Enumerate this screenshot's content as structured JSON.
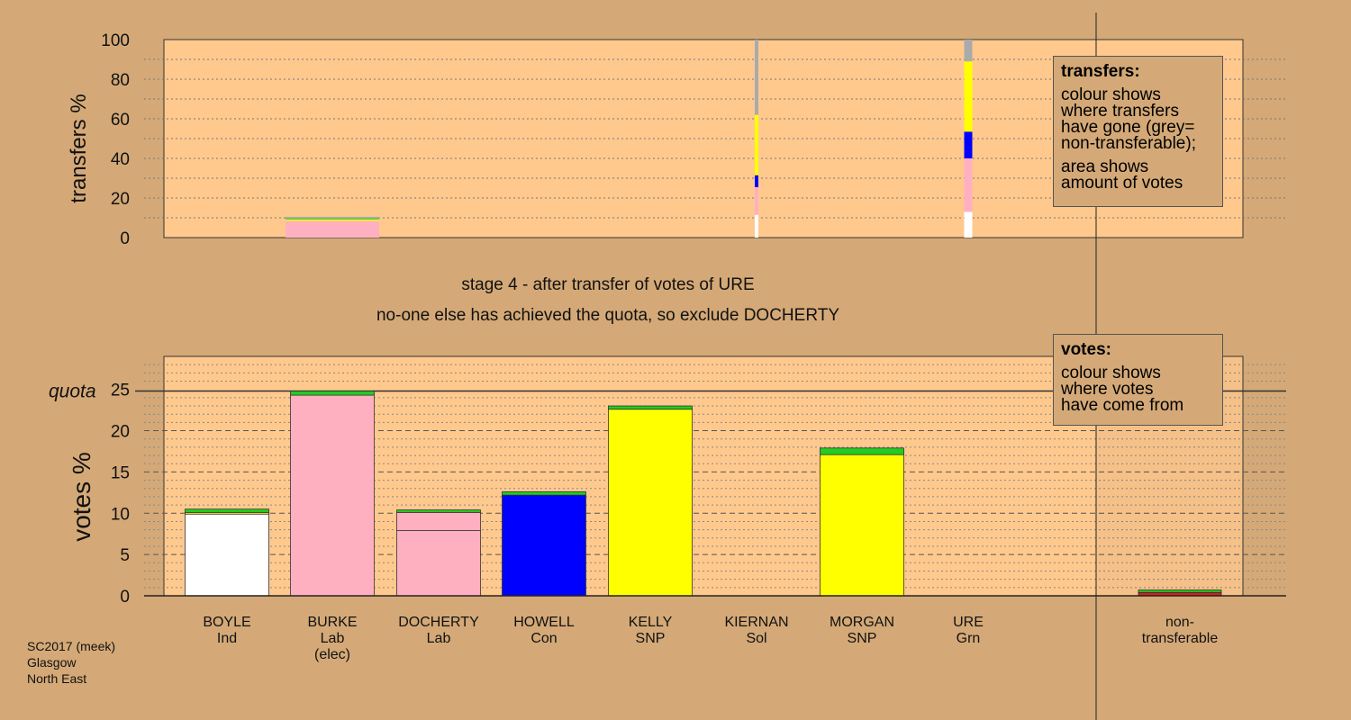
{
  "stage_text": "stage 4 - after transfer of votes of URE",
  "exclude_text": "no-one else has achieved the quota, so exclude DOCHERTY",
  "footer": {
    "line1": "SC2017 (meek)",
    "line2": "Glasgow",
    "line3": "North East"
  },
  "legend_transfers": {
    "title": "transfers:",
    "line1": "colour shows",
    "line2": "where transfers",
    "line3": "have gone (grey=",
    "line4": "non-transferable);",
    "line5": "area shows",
    "line6": "amount of votes"
  },
  "legend_votes": {
    "title": "votes:",
    "line1": "colour shows",
    "line2": "where votes",
    "line3": "have come from"
  },
  "colors": {
    "background": "#d4a977",
    "plot_bg": "#ffc98e",
    "Ind": "#ffffff",
    "Lab": "#ffb0c0",
    "Con": "#0000ff",
    "SNP": "#ffff00",
    "Grn": "#22cc22",
    "Sol": "#dd2222",
    "nontransferable": "#aaaaaa"
  },
  "chart_data": [
    {
      "type": "bar",
      "name": "transfers",
      "ylabel": "transfers %",
      "ylim": [
        0,
        100
      ],
      "yticks": [
        0,
        20,
        40,
        60,
        80,
        100
      ],
      "legend": "top-right",
      "categories": [
        "BOYLE",
        "BURKE",
        "DOCHERTY",
        "HOWELL",
        "KELLY",
        "KIERNAN",
        "MORGAN",
        "URE"
      ],
      "bars": [
        {
          "candidate": "BURKE",
          "segments": [
            {
              "party": "Lab",
              "value": 8.5
            },
            {
              "party": "SNP",
              "value": 0.7
            },
            {
              "party": "Grn",
              "value": 0.5
            },
            {
              "party": "nontransferable",
              "value": 0.8
            }
          ]
        },
        {
          "candidate": "KIERNAN",
          "segments": [
            {
              "party": "Ind",
              "value": 11.5
            },
            {
              "party": "Lab",
              "value": 14.0
            },
            {
              "party": "Con",
              "value": 6.0
            },
            {
              "party": "SNP",
              "value": 30.5
            },
            {
              "party": "nontransferable",
              "value": 38.0
            }
          ]
        },
        {
          "candidate": "URE",
          "segments": [
            {
              "party": "Ind",
              "value": 13.0
            },
            {
              "party": "Lab",
              "value": 27.0
            },
            {
              "party": "Con",
              "value": 13.5
            },
            {
              "party": "SNP",
              "value": 35.5
            },
            {
              "party": "nontransferable",
              "value": 11.0
            }
          ]
        }
      ]
    },
    {
      "type": "bar",
      "name": "votes",
      "ylabel": "votes %",
      "ylim": [
        0,
        29
      ],
      "yticks": [
        0,
        5,
        10,
        15,
        20,
        25
      ],
      "quota": 24.8,
      "quota_label": "quota",
      "legend": "top-right",
      "candidates": [
        {
          "name": "BOYLE",
          "party": "Ind",
          "note": "",
          "segments": [
            {
              "party": "Ind",
              "value": 9.9
            },
            {
              "party": "SNP",
              "value": 0.2
            },
            {
              "party": "Grn",
              "value": 0.4
            }
          ]
        },
        {
          "name": "BURKE",
          "party": "Lab",
          "note": "(elec)",
          "segments": [
            {
              "party": "Lab",
              "value": 24.3
            },
            {
              "party": "Grn",
              "value": 0.5
            }
          ]
        },
        {
          "name": "DOCHERTY",
          "party": "Lab",
          "note": "",
          "segments": [
            {
              "party": "Lab",
              "value": 7.9
            },
            {
              "party": "Lab",
              "value": 2.2
            },
            {
              "party": "Grn",
              "value": 0.3
            }
          ]
        },
        {
          "name": "HOWELL",
          "party": "Con",
          "note": "",
          "segments": [
            {
              "party": "Con",
              "value": 12.2
            },
            {
              "party": "Grn",
              "value": 0.4
            }
          ]
        },
        {
          "name": "KELLY",
          "party": "SNP",
          "note": "",
          "segments": [
            {
              "party": "SNP",
              "value": 22.6
            },
            {
              "party": "Grn",
              "value": 0.4
            }
          ]
        },
        {
          "name": "KIERNAN",
          "party": "Sol",
          "note": "",
          "segments": []
        },
        {
          "name": "MORGAN",
          "party": "SNP",
          "note": "",
          "segments": [
            {
              "party": "SNP",
              "value": 17.1
            },
            {
              "party": "Grn",
              "value": 0.8
            }
          ]
        },
        {
          "name": "URE",
          "party": "Grn",
          "note": "",
          "segments": []
        },
        {
          "name": "non-",
          "party": "transferable",
          "note": "",
          "segments": [
            {
              "party": "Sol",
              "value": 0.4
            },
            {
              "party": "Grn",
              "value": 0.3
            }
          ]
        }
      ]
    }
  ]
}
